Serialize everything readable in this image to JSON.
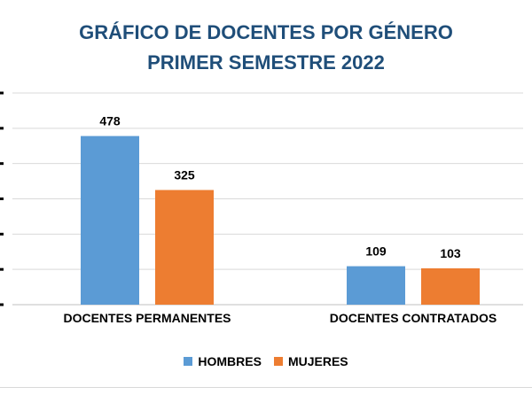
{
  "chart_data": {
    "type": "bar",
    "title": "GRÁFICO DE DOCENTES POR GÉNERO",
    "subtitle": "PRIMER SEMESTRE 2022",
    "categories": [
      "DOCENTES PERMANENTES",
      "DOCENTES CONTRATADOS"
    ],
    "series": [
      {
        "name": "HOMBRES",
        "values": [
          478,
          109
        ],
        "color": "#5b9bd5"
      },
      {
        "name": "MUJERES",
        "values": [
          325,
          103
        ],
        "color": "#ed7d31"
      }
    ],
    "ylim": [
      0,
      600
    ],
    "ytick_step": 100,
    "grid": true,
    "legend": "bottom",
    "data_labels": true
  }
}
